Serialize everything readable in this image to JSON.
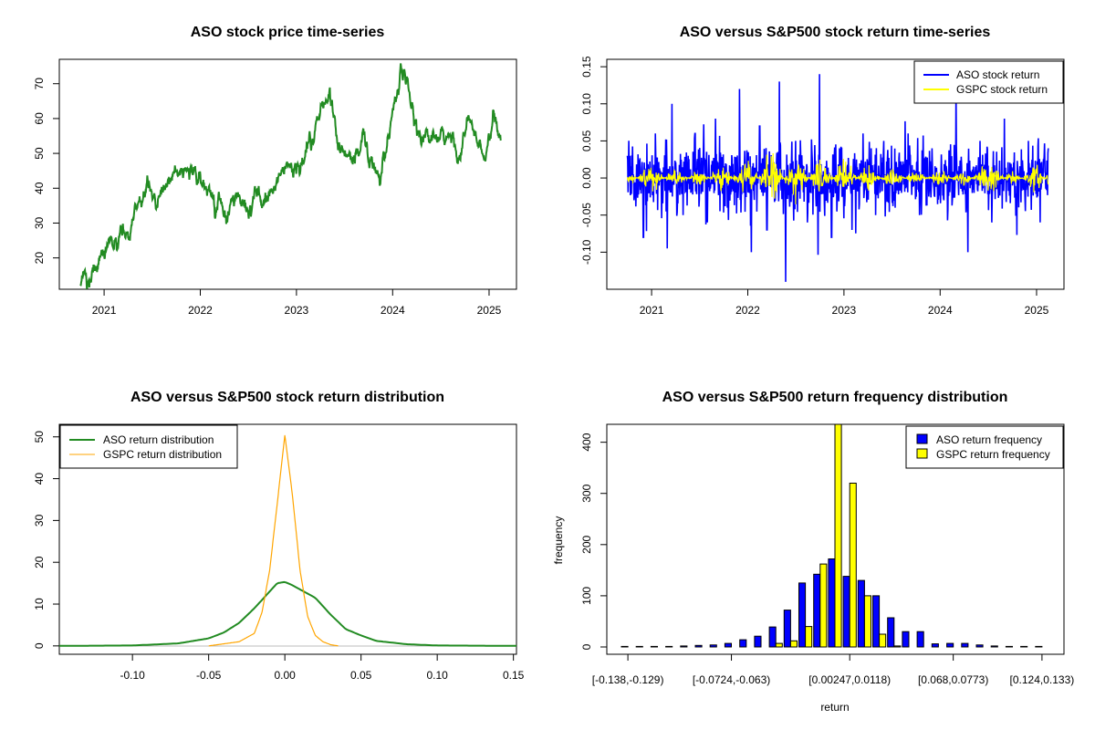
{
  "chart_data": [
    {
      "type": "line",
      "title": "ASO stock price time-series",
      "xlabel": "",
      "ylabel": "",
      "x_ticks": [
        "2021",
        "2022",
        "2023",
        "2024",
        "2025"
      ],
      "y_ticks": [
        "20",
        "30",
        "40",
        "50",
        "60",
        "70"
      ],
      "xlim": [
        "2020-07-15",
        "2025-04-15"
      ],
      "ylim": [
        11,
        77
      ],
      "series": [
        {
          "color": "#228B22",
          "x": [
            "2020-10-02",
            "2020-11-15",
            "2021-01-01",
            "2021-02-15",
            "2021-04-01",
            "2021-05-15",
            "2021-06-15",
            "2021-07-15",
            "2021-09-01",
            "2021-10-15",
            "2021-11-15",
            "2021-12-15",
            "2022-01-15",
            "2022-03-01",
            "2022-04-15",
            "2022-05-15",
            "2022-06-15",
            "2022-08-01",
            "2022-09-15",
            "2022-11-01",
            "2022-12-15",
            "2023-02-01",
            "2023-03-15",
            "2023-04-15",
            "2023-05-15",
            "2023-06-15",
            "2023-08-01",
            "2023-09-15",
            "2023-10-15",
            "2023-11-15",
            "2024-01-01",
            "2024-02-01",
            "2024-03-01",
            "2024-04-01",
            "2024-05-15",
            "2024-07-01",
            "2024-08-15",
            "2024-09-15",
            "2024-10-15",
            "2024-11-15",
            "2024-12-15",
            "2025-01-15",
            "2025-02-15"
          ],
          "y": [
            13,
            16,
            20,
            24,
            28,
            36,
            41,
            36,
            40,
            44,
            48,
            44,
            40,
            35,
            32,
            38,
            32,
            38,
            37,
            46,
            45,
            48,
            58,
            64,
            66,
            50,
            49,
            56,
            45,
            43,
            63,
            74,
            66,
            58,
            54,
            53,
            54,
            50,
            59,
            54,
            47,
            59,
            53
          ]
        }
      ]
    },
    {
      "type": "line",
      "title": "ASO versus S&P500 stock return time-series",
      "xlabel": "",
      "ylabel": "",
      "x_ticks": [
        "2021",
        "2022",
        "2023",
        "2024",
        "2025"
      ],
      "y_ticks": [
        "-0.10",
        "-0.05",
        "0.00",
        "0.05",
        "0.10",
        "0.15"
      ],
      "xlim": [
        "2020-07-15",
        "2025-04-15"
      ],
      "ylim": [
        -0.15,
        0.16
      ],
      "legend": {
        "position": "top-right",
        "entries": [
          "ASO stock return",
          "GSPC stock return"
        ]
      },
      "series": [
        {
          "name": "ASO stock return",
          "color": "#0000FF",
          "x": [
            "2020-10-01",
            "2020-12-01",
            "2021-01-15",
            "2021-03-01",
            "2021-03-20",
            "2021-05-01",
            "2021-06-15",
            "2021-08-01",
            "2021-09-01",
            "2021-10-15",
            "2021-12-01",
            "2022-01-15",
            "2022-02-15",
            "2022-03-15",
            "2022-05-01",
            "2022-05-25",
            "2022-07-01",
            "2022-08-15",
            "2022-10-01",
            "2022-11-15",
            "2022-12-15",
            "2023-02-01",
            "2023-03-15",
            "2023-05-01",
            "2023-06-01",
            "2023-07-15",
            "2023-09-01",
            "2023-10-15",
            "2023-12-01",
            "2024-01-15",
            "2024-03-01",
            "2024-04-15",
            "2024-06-01",
            "2024-07-15",
            "2024-09-01",
            "2024-10-15",
            "2024-12-01",
            "2025-01-15",
            "2025-02-15"
          ],
          "y": [
            0.03,
            -0.08,
            0.06,
            -0.095,
            0.1,
            -0.05,
            0.06,
            -0.06,
            0.08,
            -0.04,
            0.12,
            -0.1,
            0.07,
            -0.07,
            0.13,
            -0.14,
            0.05,
            -0.06,
            0.14,
            -0.08,
            0.04,
            -0.07,
            0.06,
            -0.05,
            0.05,
            -0.04,
            0.06,
            -0.05,
            0.04,
            -0.03,
            0.12,
            -0.1,
            0.05,
            -0.06,
            0.08,
            -0.05,
            0.05,
            -0.06,
            0.04
          ]
        },
        {
          "name": "GSPC stock return",
          "color": "#FFFF00",
          "x": [
            "2020-10-01",
            "2021-01-01",
            "2021-04-01",
            "2021-07-01",
            "2021-10-01",
            "2022-01-01",
            "2022-04-01",
            "2022-07-01",
            "2022-10-01",
            "2023-01-01",
            "2023-04-01",
            "2023-07-01",
            "2023-10-01",
            "2024-01-01",
            "2024-04-01",
            "2024-07-01",
            "2024-10-01",
            "2025-01-01",
            "2025-02-15"
          ],
          "y": [
            0.01,
            -0.015,
            0.012,
            -0.01,
            0.015,
            -0.025,
            0.03,
            -0.03,
            0.025,
            -0.02,
            0.015,
            -0.012,
            0.01,
            -0.01,
            0.012,
            -0.02,
            0.01,
            -0.015,
            0.008
          ]
        }
      ]
    },
    {
      "type": "line",
      "title": "ASO versus S&P500 stock return distribution",
      "xlabel": "",
      "ylabel": "",
      "x_ticks": [
        "-0.10",
        "-0.05",
        "0.00",
        "0.05",
        "0.10",
        "0.15"
      ],
      "y_ticks": [
        "0",
        "10",
        "20",
        "30",
        "40",
        "50"
      ],
      "xlim": [
        -0.148,
        0.152
      ],
      "ylim": [
        -2,
        53
      ],
      "legend": {
        "position": "top-left",
        "entries": [
          "ASO return distribution",
          "GSPC return distribution"
        ]
      },
      "series": [
        {
          "name": "ASO return distribution",
          "color": "#228B22",
          "x": [
            -0.148,
            -0.1,
            -0.07,
            -0.05,
            -0.04,
            -0.03,
            -0.02,
            -0.01,
            -0.005,
            0,
            0.005,
            0.01,
            0.02,
            0.03,
            0.04,
            0.05,
            0.06,
            0.08,
            0.1,
            0.152
          ],
          "y": [
            0,
            0.1,
            0.6,
            1.8,
            3.2,
            5.5,
            9,
            13,
            15,
            15.3,
            14.5,
            13.5,
            11.5,
            7.5,
            4,
            2.5,
            1.2,
            0.4,
            0.1,
            0
          ]
        },
        {
          "name": "GSPC return distribution",
          "color": "#FFA500",
          "x": [
            -0.05,
            -0.03,
            -0.02,
            -0.015,
            -0.01,
            -0.005,
            0,
            0.005,
            0.01,
            0.015,
            0.02,
            0.025,
            0.03,
            0.035
          ],
          "y": [
            0,
            1,
            3,
            8,
            18,
            34,
            50.5,
            36,
            18,
            7,
            2.5,
            1,
            0.3,
            0
          ]
        }
      ]
    },
    {
      "type": "bar",
      "title": "ASO versus S&P500 return frequency distribution",
      "xlabel": "return",
      "ylabel": "frequency",
      "x_ticks": [
        "[-0.138,-0.129)",
        "[-0.0724,-0.063)",
        "[0.00247,0.0118)",
        "[0.068,0.0773)",
        "[0.124,0.133)"
      ],
      "y_ticks": [
        "0",
        "100",
        "200",
        "300",
        "400"
      ],
      "ylim": [
        0,
        435
      ],
      "legend": {
        "position": "top-right",
        "entries": [
          "ASO return frequency",
          "GSPC return frequency"
        ]
      },
      "n_bins": 29,
      "series": [
        {
          "name": "ASO return frequency",
          "color": "#0000FF",
          "values": [
            1,
            1,
            1,
            1,
            2,
            3,
            4,
            7,
            14,
            21,
            39,
            72,
            125,
            142,
            172,
            138,
            130,
            100,
            57,
            30,
            30,
            6,
            7,
            7,
            4,
            2,
            1,
            1,
            1
          ]
        },
        {
          "name": "GSPC return frequency",
          "color": "#FFFF00",
          "values": [
            0,
            0,
            0,
            0,
            0,
            0,
            0,
            0,
            0,
            0,
            7,
            12,
            40,
            162,
            435,
            320,
            100,
            25,
            2,
            0,
            0,
            0,
            0,
            0,
            0,
            0,
            0,
            0,
            0
          ]
        }
      ]
    }
  ]
}
